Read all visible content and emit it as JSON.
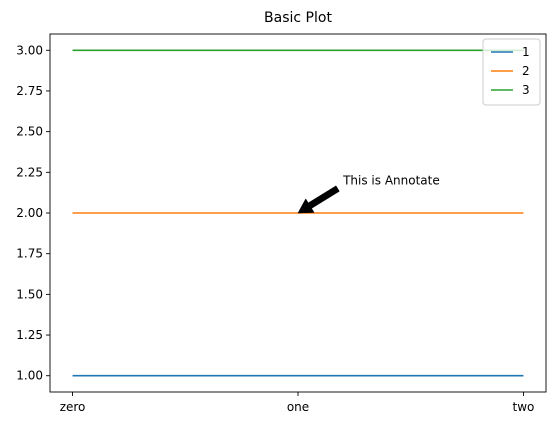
{
  "chart_data": {
    "type": "line",
    "title": "Basic Plot",
    "xlabel": "",
    "ylabel": "",
    "categories": [
      "zero",
      "one",
      "two"
    ],
    "series": [
      {
        "name": "1",
        "values": [
          1,
          1,
          1
        ],
        "color": "#1f77b4"
      },
      {
        "name": "2",
        "values": [
          2,
          2,
          2
        ],
        "color": "#ff7f0e"
      },
      {
        "name": "3",
        "values": [
          3,
          3,
          3
        ],
        "color": "#2ca02c"
      }
    ],
    "ylim": [
      0.9,
      3.1
    ],
    "yticks": [
      "1.00",
      "1.25",
      "1.50",
      "1.75",
      "2.00",
      "2.25",
      "2.50",
      "2.75",
      "3.00"
    ],
    "grid": false,
    "legend": "upper right",
    "annotation": {
      "text": "This is Annotate",
      "point": {
        "category": "one",
        "y": 2
      },
      "text_position": {
        "category_index": 1.2,
        "y": 2.2
      },
      "arrow_color": "#000000"
    }
  }
}
